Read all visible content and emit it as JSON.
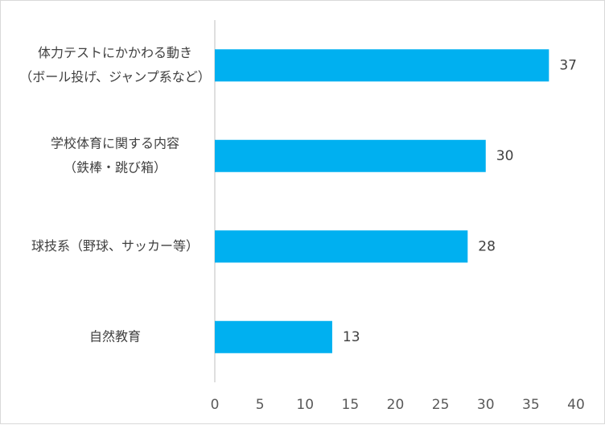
{
  "chart_data": {
    "type": "bar",
    "orientation": "horizontal",
    "title": "",
    "xlabel": "",
    "ylabel": "",
    "categories": [
      [
        "体力テストにかかわる動き",
        "（ボール投げ、ジャンプ系など）"
      ],
      [
        "学校体育に関する内容",
        "（鉄棒・跳び箱）"
      ],
      [
        "球技系（野球、サッカー等）"
      ],
      [
        "自然教育"
      ]
    ],
    "values": [
      37,
      30,
      28,
      13
    ],
    "xlim": [
      0,
      40
    ],
    "xticks": [
      "0",
      "5",
      "10",
      "15",
      "20",
      "25",
      "30",
      "35",
      "40"
    ],
    "data_labels": [
      "37",
      "30",
      "28",
      "13"
    ],
    "bar_color": "#00b0f0",
    "grid": false,
    "legend": "none"
  }
}
